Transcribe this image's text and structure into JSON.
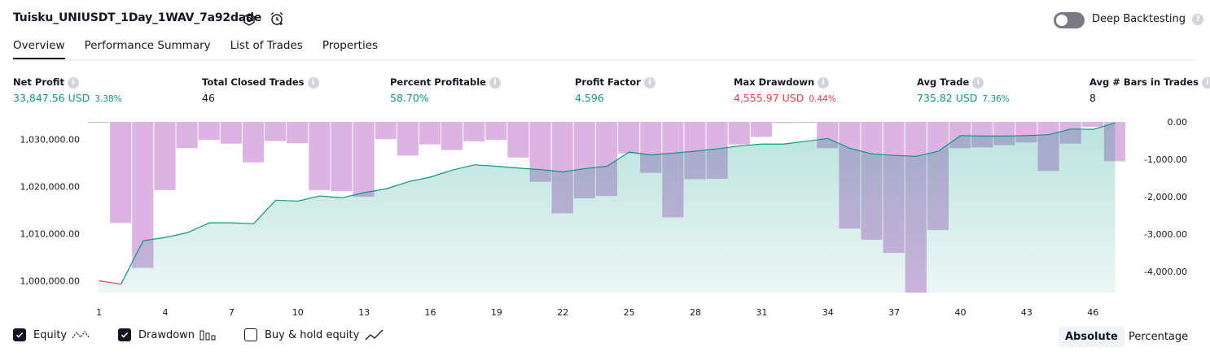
{
  "header": {
    "title": "Tuisku_UNIUSDT_1Day_1WAV_7a92dade",
    "deep_backtesting_label": "Deep Backtesting",
    "deep_backtesting_on": false
  },
  "tabs": [
    {
      "label": "Overview",
      "active": true
    },
    {
      "label": "Performance Summary",
      "active": false
    },
    {
      "label": "List of Trades",
      "active": false
    },
    {
      "label": "Properties",
      "active": false
    }
  ],
  "metrics": [
    {
      "label": "Net Profit",
      "value": "33,847.56 USD",
      "pct": "3.38%",
      "color": "#089981"
    },
    {
      "label": "Total Closed Trades",
      "value": "46",
      "pct": "",
      "color": "#131722"
    },
    {
      "label": "Percent Profitable",
      "value": "58.70%",
      "pct": "",
      "color": "#089981"
    },
    {
      "label": "Profit Factor",
      "value": "4.596",
      "pct": "",
      "color": "#089981"
    },
    {
      "label": "Max Drawdown",
      "value": "4,555.97 USD",
      "pct": "0.44%",
      "color": "#f23645"
    },
    {
      "label": "Avg Trade",
      "value": "735.82 USD",
      "pct": "7.36%",
      "color": "#089981"
    },
    {
      "label": "Avg # Bars in Trades",
      "value": "8",
      "pct": "",
      "color": "#131722"
    }
  ],
  "chart_data": {
    "type": "area",
    "x_ticks": [
      1,
      4,
      7,
      10,
      13,
      16,
      19,
      22,
      25,
      28,
      31,
      34,
      37,
      40,
      43,
      46
    ],
    "left_axis": {
      "ticks": [
        "1,000,000.00",
        "1,010,000.00",
        "1,020,000.00",
        "1,030,000.00"
      ],
      "tick_values": [
        1000000,
        1010000,
        1020000,
        1030000
      ],
      "range": [
        997500,
        1033700
      ]
    },
    "right_axis": {
      "ticks": [
        "0.00",
        "-1,000.00",
        "-2,000.00",
        "-3,000.00",
        "-4,000.00"
      ],
      "tick_values": [
        0,
        -1000,
        -2000,
        -3000,
        -4000
      ],
      "range": [
        -4560,
        0
      ]
    },
    "series": [
      {
        "name": "Equity",
        "axis": "left",
        "color": "#089981",
        "negative_color": "#f23645",
        "x": [
          1,
          2,
          3,
          4,
          5,
          6,
          7,
          8,
          9,
          10,
          11,
          12,
          13,
          14,
          15,
          16,
          17,
          18,
          19,
          20,
          21,
          22,
          23,
          24,
          25,
          26,
          27,
          28,
          29,
          30,
          31,
          32,
          33,
          34,
          35,
          36,
          37,
          38,
          39,
          40,
          41,
          42,
          43,
          44,
          45,
          46,
          47
        ],
        "values": [
          1000000,
          999300,
          1008500,
          1009200,
          1010200,
          1012300,
          1012300,
          1012100,
          1017100,
          1016900,
          1018000,
          1017600,
          1018700,
          1019500,
          1021000,
          1022000,
          1023500,
          1024600,
          1024300,
          1023900,
          1023600,
          1023100,
          1023800,
          1024300,
          1027300,
          1026700,
          1027100,
          1027500,
          1028000,
          1028600,
          1029000,
          1029000,
          1029600,
          1030200,
          1028100,
          1026900,
          1026600,
          1026400,
          1027500,
          1030800,
          1030700,
          1030700,
          1030800,
          1031000,
          1032200,
          1032100,
          1033500
        ]
      },
      {
        "name": "Drawdown",
        "axis": "right",
        "color": "#ba68c8",
        "x": [
          1,
          2,
          3,
          4,
          5,
          6,
          7,
          8,
          9,
          10,
          11,
          12,
          13,
          14,
          15,
          16,
          17,
          18,
          19,
          20,
          21,
          22,
          23,
          24,
          25,
          26,
          27,
          28,
          29,
          30,
          31,
          32,
          33,
          34,
          35,
          36,
          37,
          38,
          39,
          40,
          41,
          42,
          43,
          44,
          45,
          46,
          47
        ],
        "values": [
          -15,
          -2700,
          -3900,
          -1820,
          -700,
          -480,
          -580,
          -1080,
          -510,
          -570,
          -1820,
          -1850,
          -2000,
          -460,
          -900,
          -600,
          -750,
          -520,
          -480,
          -950,
          -1600,
          -2440,
          -2040,
          -1980,
          -840,
          -1360,
          -2550,
          -1530,
          -1520,
          -600,
          -400,
          -30,
          -15,
          -700,
          -2850,
          -3150,
          -3500,
          -4560,
          -2890,
          -700,
          -680,
          -620,
          -550,
          -1310,
          -580,
          -130,
          -1050
        ]
      }
    ],
    "legend": [
      {
        "label": "Equity",
        "checked": true
      },
      {
        "label": "Drawdown",
        "checked": true
      },
      {
        "label": "Buy & hold equity",
        "checked": false
      }
    ],
    "modes": [
      {
        "label": "Absolute",
        "active": true
      },
      {
        "label": "Percentage",
        "active": false
      }
    ]
  }
}
